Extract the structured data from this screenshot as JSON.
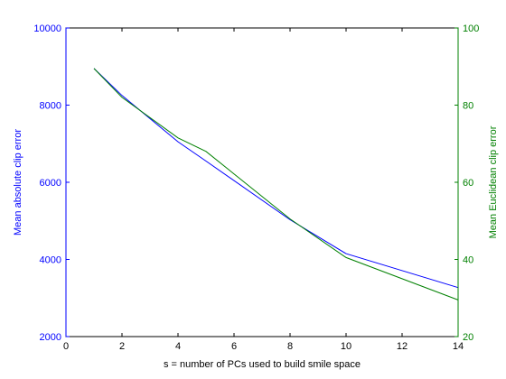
{
  "chart_data": {
    "type": "line",
    "xlabel": "s = number of PCs used to build smile space",
    "ylabel_left": "Mean absolute clip error",
    "ylabel_right": "Mean Euclidean clip error",
    "xlim": [
      0,
      14
    ],
    "ylim_left": [
      2000,
      10000
    ],
    "ylim_right": [
      20,
      100
    ],
    "x_ticks": [
      0,
      2,
      4,
      6,
      8,
      10,
      12,
      14
    ],
    "y_ticks_left": [
      2000,
      4000,
      6000,
      8000,
      10000
    ],
    "y_ticks_right": [
      20,
      40,
      60,
      80,
      100
    ],
    "grid": false,
    "colors": {
      "left": "#0000ff",
      "right": "#008000",
      "axes": "#000000"
    },
    "series": [
      {
        "axis": "left",
        "color": "#0000ff",
        "x": [
          1,
          2,
          4,
          5,
          8,
          10,
          14
        ],
        "values": [
          8950,
          8250,
          7050,
          6550,
          5030,
          4150,
          3270
        ]
      },
      {
        "axis": "right",
        "color": "#008000",
        "x": [
          1,
          2,
          4,
          5,
          8,
          10,
          14
        ],
        "values": [
          89.5,
          82,
          71.5,
          68,
          50.5,
          40.5,
          29.5
        ]
      }
    ]
  }
}
